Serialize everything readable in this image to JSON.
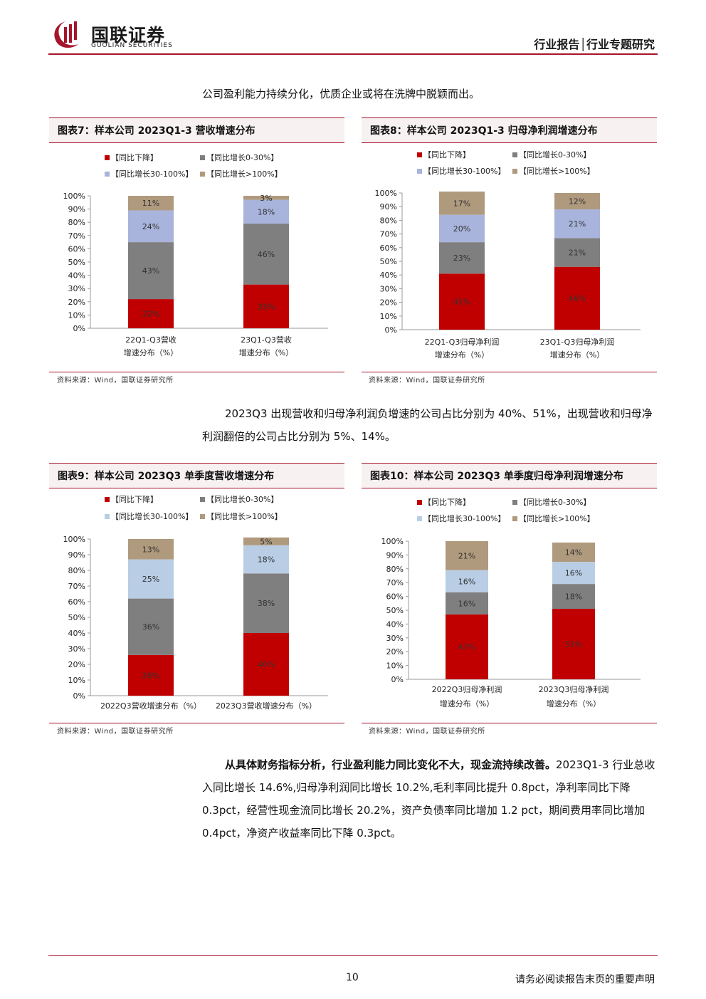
{
  "header": {
    "logo_cn": "国联证券",
    "logo_en": "GUOLIAN SECURITIES",
    "report_type": "行业报告│行业专题研究"
  },
  "paragraphs": {
    "p1": "公司盈利能力持续分化，优质企业或将在洗牌中脱颖而出。",
    "p2": "2023Q3 出现营收和归母净利润负增速的公司占比分别为 40%、51%，出现营收和归母净利润翻倍的公司占比分别为 5%、14%。",
    "p3_bold": "从具体财务指标分析，行业盈利能力同比变化不大，现金流持续改善。",
    "p3_rest": "2023Q1-3 行业总收入同比增长 14.6%,归母净利润同比增长 10.2%,毛利率同比提升 0.8pct，净利率同比下降 0.3pct，经营性现金流同比增长 20.2%，资产负债率同比增加 1.2 pct，期间费用率同比增加 0.4pct，净资产收益率同比下降 0.3pct。"
  },
  "source_label": "资料来源：Wind，国联证券研究所",
  "footer": {
    "page_number": "10",
    "disclaimer": "请务必阅读报告末页的重要声明"
  },
  "legend": [
    "【同比下降】",
    "【同比增长0-30%】",
    "【同比增长30-100%】",
    "【同比增长>100%】"
  ],
  "colors": {
    "brand": "#a5152b",
    "fig78": [
      "#c00000",
      "#7f7f7f",
      "#a9b4dc",
      "#b09a7e"
    ],
    "fig910": [
      "#c00000",
      "#7f7f7f",
      "#b9cde5",
      "#b09a7e"
    ]
  },
  "y_ticks": [
    "0%",
    "10%",
    "20%",
    "30%",
    "40%",
    "50%",
    "60%",
    "70%",
    "80%",
    "90%",
    "100%"
  ],
  "chart_data": [
    {
      "id": "fig7",
      "type": "bar",
      "stacked": true,
      "title": "图表7：样本公司 2023Q1-3 营收增速分布",
      "categories": [
        [
          "22Q1-Q3营收",
          "增速分布（%）"
        ],
        [
          "23Q1-Q3营收",
          "增速分布（%）"
        ]
      ],
      "series": [
        {
          "name": "【同比下降】",
          "values": [
            22,
            33
          ]
        },
        {
          "name": "【同比增长0-30%】",
          "values": [
            43,
            46
          ]
        },
        {
          "name": "【同比增长30-100%】",
          "values": [
            24,
            18
          ]
        },
        {
          "name": "【同比增长>100%】",
          "values": [
            11,
            3
          ]
        }
      ],
      "ylim": [
        0,
        100
      ]
    },
    {
      "id": "fig8",
      "type": "bar",
      "stacked": true,
      "title": "图表8：样本公司 2023Q1-3 归母净利润增速分布",
      "categories": [
        [
          "22Q1-Q3归母净利润",
          "增速分布（%）"
        ],
        [
          "23Q1-Q3归母净利润",
          "增速分布（%）"
        ]
      ],
      "series": [
        {
          "name": "【同比下降】",
          "values": [
            41,
            46
          ]
        },
        {
          "name": "【同比增长0-30%】",
          "values": [
            23,
            21
          ]
        },
        {
          "name": "【同比增长30-100%】",
          "values": [
            20,
            21
          ]
        },
        {
          "name": "【同比增长>100%】",
          "values": [
            17,
            12
          ]
        }
      ],
      "ylim": [
        0,
        100
      ]
    },
    {
      "id": "fig9",
      "type": "bar",
      "stacked": true,
      "title": "图表9：样本公司 2023Q3 单季度营收增速分布",
      "categories": [
        [
          "2022Q3营收增速分布（%）"
        ],
        [
          "2023Q3营收增速分布（%）"
        ]
      ],
      "series": [
        {
          "name": "【同比下降】",
          "values": [
            26,
            40
          ]
        },
        {
          "name": "【同比增长0-30%】",
          "values": [
            36,
            38
          ]
        },
        {
          "name": "【同比增长30-100%】",
          "values": [
            25,
            18
          ]
        },
        {
          "name": "【同比增长>100%】",
          "values": [
            13,
            5
          ]
        }
      ],
      "ylim": [
        0,
        100
      ]
    },
    {
      "id": "fig10",
      "type": "bar",
      "stacked": true,
      "title": "图表10：样本公司 2023Q3 单季度归母净利润增速分布",
      "categories": [
        [
          "2022Q3归母净利润",
          "增速分布（%）"
        ],
        [
          "2023Q3归母净利润",
          "增速分布（%）"
        ]
      ],
      "series": [
        {
          "name": "【同比下降】",
          "values": [
            47,
            51
          ]
        },
        {
          "name": "【同比增长0-30%】",
          "values": [
            16,
            18
          ]
        },
        {
          "name": "【同比增长30-100%】",
          "values": [
            16,
            16
          ]
        },
        {
          "name": "【同比增长>100%】",
          "values": [
            21,
            14
          ]
        }
      ],
      "ylim": [
        0,
        100
      ]
    }
  ]
}
